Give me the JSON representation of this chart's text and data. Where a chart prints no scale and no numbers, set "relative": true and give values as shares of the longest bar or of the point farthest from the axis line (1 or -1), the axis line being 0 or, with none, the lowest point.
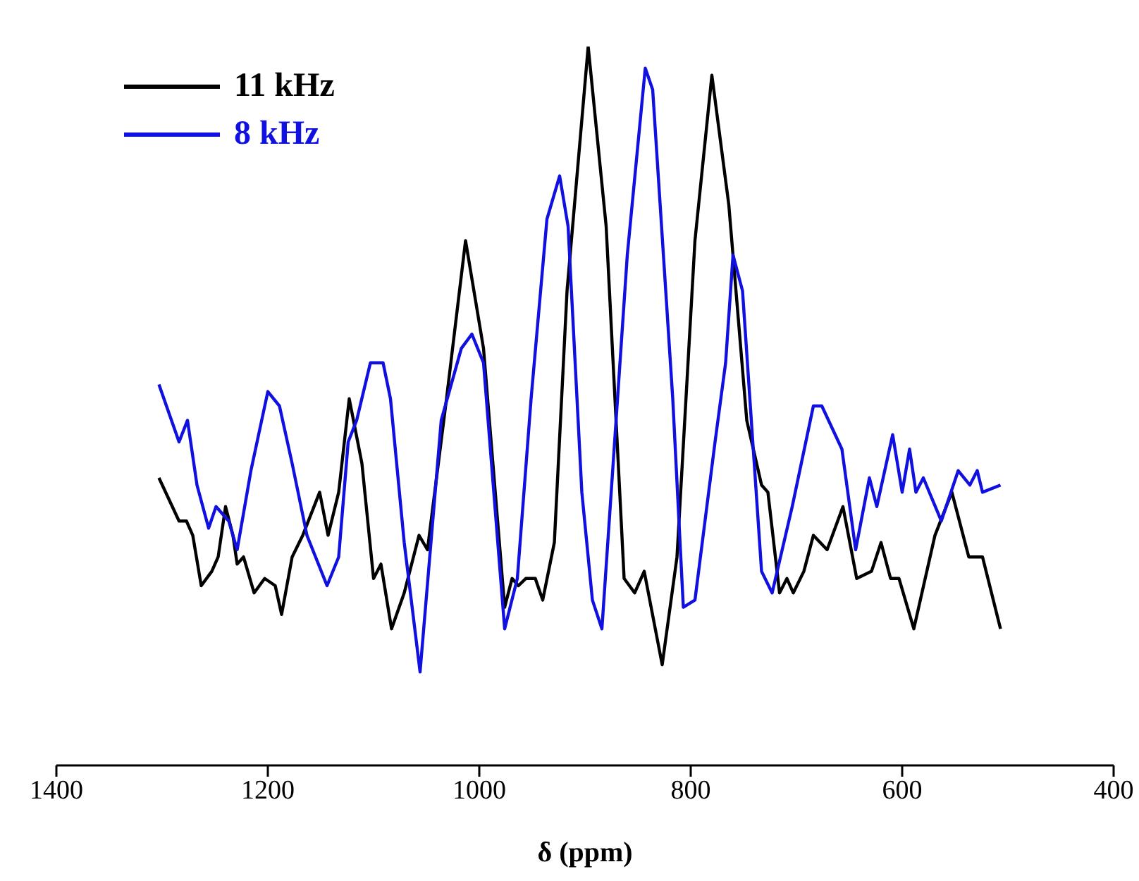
{
  "chart_data": {
    "type": "line",
    "xlabel": "δ (ppm)",
    "relative": true,
    "xlim": [
      1400,
      400
    ],
    "xticks": [
      1400,
      1200,
      1000,
      800,
      600,
      400
    ],
    "tick_labels": "x",
    "legend": "top left",
    "grid": false,
    "series": [
      {
        "name": "11 kHz",
        "color": "#000000",
        "x": [
          1303,
          1284,
          1277,
          1271,
          1263,
          1253,
          1247,
          1240,
          1233,
          1229,
          1223,
          1213,
          1203,
          1193,
          1187,
          1177,
          1167,
          1151,
          1143,
          1133,
          1123,
          1111,
          1100,
          1093,
          1083,
          1071,
          1057,
          1049,
          1031,
          1013,
          996,
          976,
          969,
          963,
          956,
          947,
          940,
          929,
          917,
          897,
          880,
          863,
          853,
          844,
          827,
          813,
          796,
          780,
          764,
          747,
          733,
          727,
          716,
          709,
          703,
          693,
          684,
          671,
          656,
          643,
          629,
          620,
          611,
          603,
          589,
          569,
          553,
          537,
          524,
          507
        ],
        "values": [
          0.4,
          0.34,
          0.34,
          0.32,
          0.25,
          0.27,
          0.29,
          0.36,
          0.32,
          0.28,
          0.29,
          0.24,
          0.26,
          0.25,
          0.21,
          0.29,
          0.32,
          0.38,
          0.32,
          0.38,
          0.51,
          0.42,
          0.26,
          0.28,
          0.19,
          0.24,
          0.32,
          0.3,
          0.51,
          0.73,
          0.58,
          0.22,
          0.26,
          0.25,
          0.26,
          0.26,
          0.23,
          0.31,
          0.66,
          1,
          0.75,
          0.26,
          0.24,
          0.27,
          0.14,
          0.29,
          0.73,
          0.96,
          0.78,
          0.48,
          0.39,
          0.38,
          0.24,
          0.26,
          0.24,
          0.27,
          0.32,
          0.3,
          0.36,
          0.26,
          0.27,
          0.31,
          0.26,
          0.26,
          0.19,
          0.32,
          0.38,
          0.29,
          0.29,
          0.19
        ]
      },
      {
        "name": "8 kHz",
        "color": "#1010e0",
        "x": [
          1303,
          1284,
          1276,
          1267,
          1256,
          1249,
          1237,
          1229,
          1216,
          1200,
          1189,
          1177,
          1163,
          1144,
          1133,
          1124,
          1116,
          1103,
          1091,
          1084,
          1071,
          1056,
          1036,
          1017,
          1007,
          996,
          976,
          964,
          951,
          936,
          924,
          916,
          903,
          893,
          884,
          860,
          843,
          836,
          817,
          807,
          796,
          777,
          767,
          760,
          751,
          733,
          723,
          704,
          684,
          676,
          657,
          644,
          631,
          624,
          609,
          600,
          593,
          587,
          580,
          563,
          547,
          536,
          529,
          524,
          507
        ],
        "values": [
          0.53,
          0.45,
          0.48,
          0.39,
          0.33,
          0.36,
          0.34,
          0.3,
          0.41,
          0.52,
          0.5,
          0.42,
          0.32,
          0.25,
          0.29,
          0.45,
          0.48,
          0.56,
          0.56,
          0.51,
          0.31,
          0.13,
          0.48,
          0.58,
          0.6,
          0.56,
          0.19,
          0.26,
          0.51,
          0.76,
          0.82,
          0.75,
          0.38,
          0.23,
          0.19,
          0.71,
          0.97,
          0.94,
          0.51,
          0.22,
          0.23,
          0.45,
          0.56,
          0.71,
          0.66,
          0.27,
          0.24,
          0.36,
          0.5,
          0.5,
          0.44,
          0.3,
          0.4,
          0.36,
          0.46,
          0.38,
          0.44,
          0.38,
          0.4,
          0.34,
          0.41,
          0.39,
          0.41,
          0.38,
          0.39
        ]
      }
    ]
  }
}
